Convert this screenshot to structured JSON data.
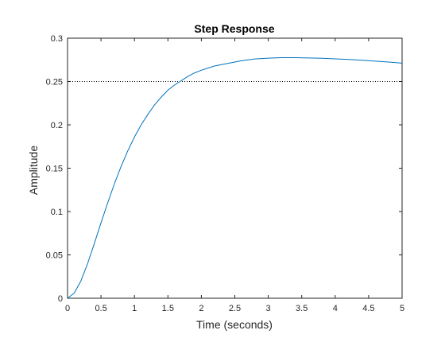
{
  "chart_data": {
    "type": "line",
    "title": "Step Response",
    "xlabel": "Time (seconds)",
    "ylabel": "Amplitude",
    "xlim": [
      0,
      5
    ],
    "ylim": [
      0,
      0.3
    ],
    "xticks": [
      0,
      0.5,
      1,
      1.5,
      2,
      2.5,
      3,
      3.5,
      4,
      4.5,
      5
    ],
    "xtick_labels": [
      "0",
      "0.5",
      "1",
      "1.5",
      "2",
      "2.5",
      "3",
      "3.5",
      "4",
      "4.5",
      "5"
    ],
    "yticks": [
      0,
      0.05,
      0.1,
      0.15,
      0.2,
      0.25,
      0.3
    ],
    "ytick_labels": [
      "0",
      "0.05",
      "0.1",
      "0.15",
      "0.2",
      "0.25",
      "0.3"
    ],
    "grid": false,
    "steady_state_line": {
      "value": 0.25,
      "style": "dotted",
      "color": "#000000"
    },
    "series": [
      {
        "color": "#0072BD",
        "x": [
          0,
          0.1,
          0.2,
          0.3,
          0.4,
          0.5,
          0.6,
          0.7,
          0.8,
          0.9,
          1.0,
          1.1,
          1.2,
          1.3,
          1.4,
          1.5,
          1.6,
          1.7,
          1.8,
          1.9,
          2.0,
          2.2,
          2.4,
          2.6,
          2.8,
          3.0,
          3.2,
          3.4,
          3.6,
          3.8,
          4.0,
          4.2,
          4.4,
          4.6,
          4.8,
          5.0
        ],
        "y": [
          0,
          0.006,
          0.02,
          0.04,
          0.063,
          0.087,
          0.11,
          0.132,
          0.152,
          0.17,
          0.186,
          0.2,
          0.212,
          0.223,
          0.232,
          0.24,
          0.246,
          0.251,
          0.256,
          0.26,
          0.263,
          0.268,
          0.271,
          0.274,
          0.276,
          0.277,
          0.2775,
          0.2775,
          0.2772,
          0.2768,
          0.2762,
          0.2755,
          0.2745,
          0.2735,
          0.2725,
          0.2712
        ]
      }
    ]
  }
}
